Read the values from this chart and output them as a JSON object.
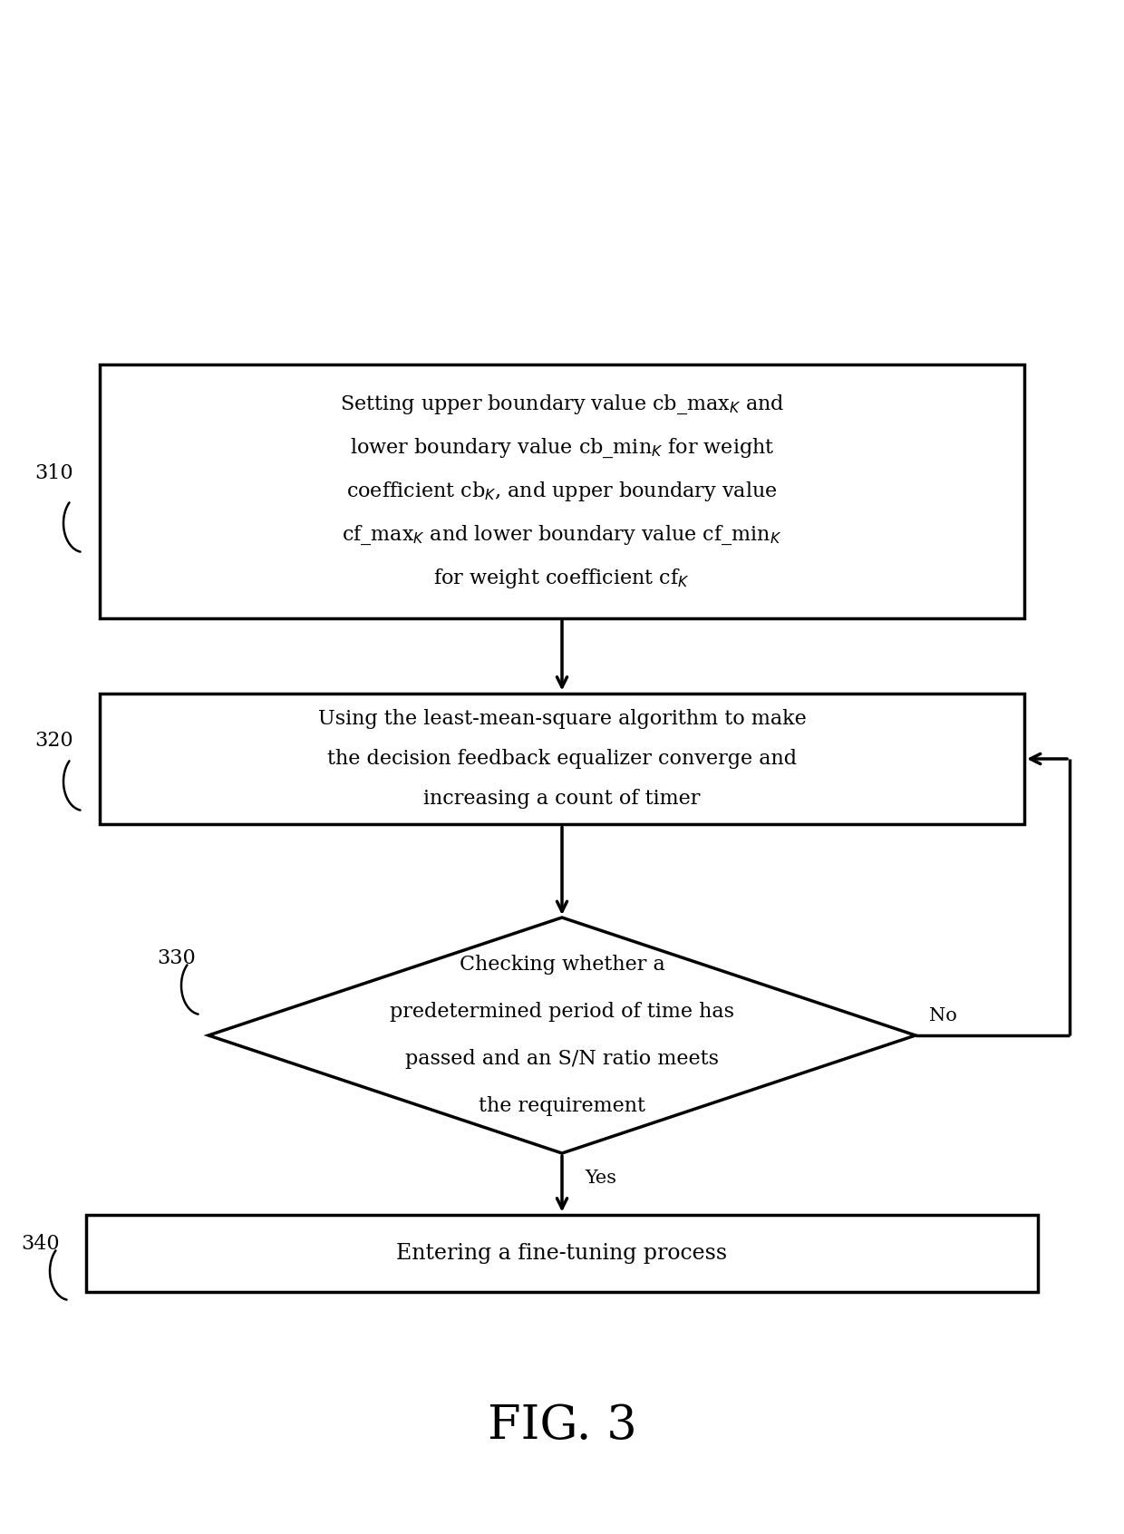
{
  "fig_width": 12.4,
  "fig_height": 16.92,
  "bg_color": "#ffffff",
  "title": "FIG. 3",
  "title_fontsize": 38,
  "box310_text_lines": [
    [
      "Setting upper boundary value cb_max",
      "K",
      " and"
    ],
    [
      "lower boundary value cb_min",
      "K",
      " for weight"
    ],
    [
      "coefficient cb",
      "K",
      ", and upper boundary value"
    ],
    [
      "cf_max",
      "K",
      " and lower boundary value cf_min",
      "K"
    ],
    [
      "for weight coefficient cf",
      "K"
    ]
  ],
  "box320_text_lines": [
    [
      "Using the least-mean-square algorithm to make"
    ],
    [
      "the decision feedback equalizer converge and"
    ],
    [
      "increasing a count of timer"
    ]
  ],
  "diamond330_text_lines": [
    [
      "Checking whether a"
    ],
    [
      "predetermined period of time has"
    ],
    [
      "passed and an S/N ratio meets"
    ],
    [
      "the requirement"
    ]
  ],
  "box340_text": "Entering a fine-tuning process",
  "label310": "310",
  "label320": "320",
  "label330": "330",
  "label340": "340",
  "label_no": "No",
  "label_yes": "Yes",
  "box_color": "#ffffff",
  "border_color": "#000000",
  "text_color": "#000000",
  "arrow_color": "#000000",
  "line_width": 2.5
}
